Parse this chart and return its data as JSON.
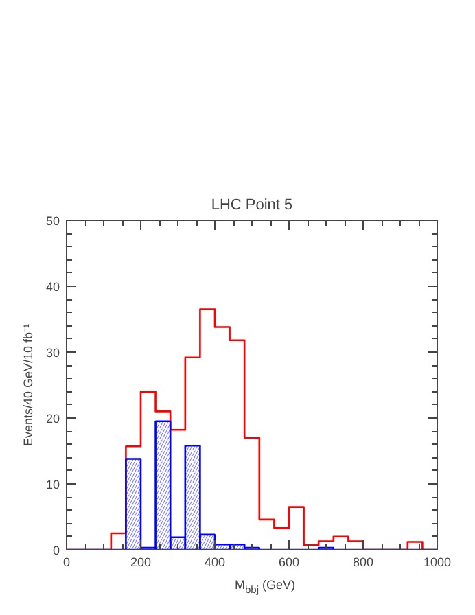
{
  "chart_data": {
    "type": "histogram",
    "title": "LHC Point 5",
    "xlabel": "M$_{bbj}$ (GeV)",
    "ylabel": "Events/40 GeV/10 fb⁻¹",
    "bins": [
      0,
      40,
      80,
      120,
      160,
      200,
      240,
      280,
      320,
      360,
      400,
      440,
      480,
      520,
      560,
      600,
      640,
      680,
      720,
      760,
      800,
      840,
      880,
      920,
      960,
      1000
    ],
    "series": [
      {
        "color": "#ff0000",
        "values": [
          0,
          0,
          0,
          2.5,
          15.7,
          24,
          21,
          18.2,
          29.2,
          36.5,
          33.8,
          31.8,
          17,
          4.6,
          3.3,
          6.5,
          0.7,
          1.3,
          2,
          1.3,
          0,
          0,
          0,
          1.2,
          0
        ]
      },
      {
        "color": "#0000ff",
        "values": [
          0,
          0,
          0,
          0,
          13.8,
          0.3,
          19.5,
          1.9,
          15.8,
          2.3,
          0.8,
          0.8,
          0.3,
          0,
          0,
          0,
          0,
          0.3,
          0,
          0,
          0,
          0,
          0,
          0,
          0
        ]
      }
    ],
    "xlim": [
      0,
      1000
    ],
    "ylim": [
      0,
      50
    ],
    "xticks": [
      0,
      200,
      400,
      600,
      800,
      1000
    ],
    "yticks": [
      0,
      10,
      20,
      30,
      40,
      50
    ],
    "grid": false
  }
}
